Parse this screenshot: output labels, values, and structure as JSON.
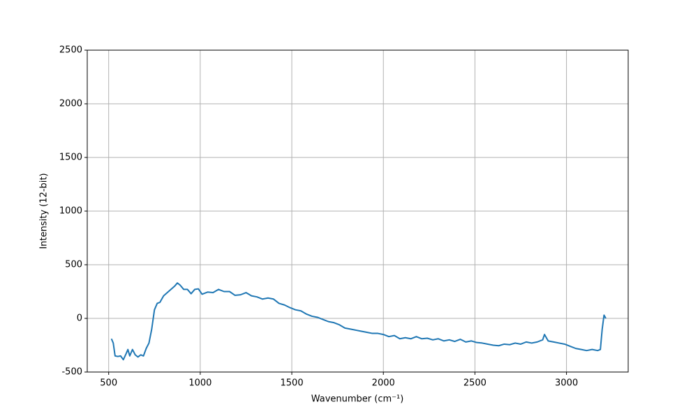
{
  "chart_data": {
    "type": "line",
    "xlabel": "Wavenumber (cm⁻¹)",
    "ylabel": "Intensity (12-bit)",
    "xlim": [
      383,
      3337
    ],
    "ylim": [
      -500,
      2500
    ],
    "xticks": [
      500,
      1000,
      1500,
      2000,
      2500,
      3000
    ],
    "yticks": [
      -500,
      0,
      500,
      1000,
      1500,
      2000,
      2500
    ],
    "grid": true,
    "series": [
      {
        "color": "#1f77b4",
        "x": [
          515,
          525,
          535,
          550,
          565,
          580,
          595,
          605,
          615,
          630,
          645,
          660,
          675,
          690,
          705,
          720,
          735,
          750,
          765,
          780,
          800,
          820,
          840,
          860,
          875,
          890,
          910,
          930,
          950,
          970,
          990,
          1010,
          1040,
          1070,
          1100,
          1130,
          1160,
          1190,
          1220,
          1250,
          1280,
          1310,
          1340,
          1370,
          1400,
          1430,
          1460,
          1490,
          1520,
          1550,
          1580,
          1610,
          1640,
          1670,
          1700,
          1730,
          1760,
          1790,
          1820,
          1850,
          1880,
          1910,
          1940,
          1970,
          2000,
          2030,
          2060,
          2090,
          2120,
          2150,
          2180,
          2210,
          2240,
          2270,
          2300,
          2330,
          2360,
          2390,
          2420,
          2450,
          2480,
          2510,
          2540,
          2570,
          2600,
          2630,
          2660,
          2690,
          2720,
          2750,
          2780,
          2810,
          2840,
          2870,
          2880,
          2900,
          2930,
          2960,
          2990,
          3020,
          3050,
          3080,
          3110,
          3140,
          3170,
          3185,
          3195,
          3205,
          3215
        ],
        "values": [
          -190,
          -230,
          -350,
          -355,
          -350,
          -385,
          -330,
          -290,
          -350,
          -290,
          -340,
          -360,
          -340,
          -350,
          -280,
          -230,
          -100,
          80,
          140,
          150,
          210,
          240,
          270,
          300,
          330,
          310,
          270,
          270,
          230,
          270,
          275,
          225,
          245,
          240,
          270,
          250,
          250,
          215,
          220,
          240,
          210,
          200,
          180,
          190,
          180,
          140,
          125,
          100,
          80,
          70,
          40,
          20,
          10,
          -10,
          -30,
          -40,
          -60,
          -90,
          -100,
          -110,
          -120,
          -130,
          -140,
          -140,
          -150,
          -170,
          -160,
          -190,
          -180,
          -190,
          -170,
          -190,
          -185,
          -200,
          -190,
          -210,
          -200,
          -215,
          -195,
          -220,
          -210,
          -225,
          -230,
          -240,
          -250,
          -255,
          -240,
          -245,
          -230,
          -240,
          -220,
          -230,
          -220,
          -200,
          -150,
          -210,
          -220,
          -230,
          -240,
          -260,
          -280,
          -290,
          -300,
          -290,
          -300,
          -290,
          -100,
          30,
          0
        ]
      }
    ]
  }
}
